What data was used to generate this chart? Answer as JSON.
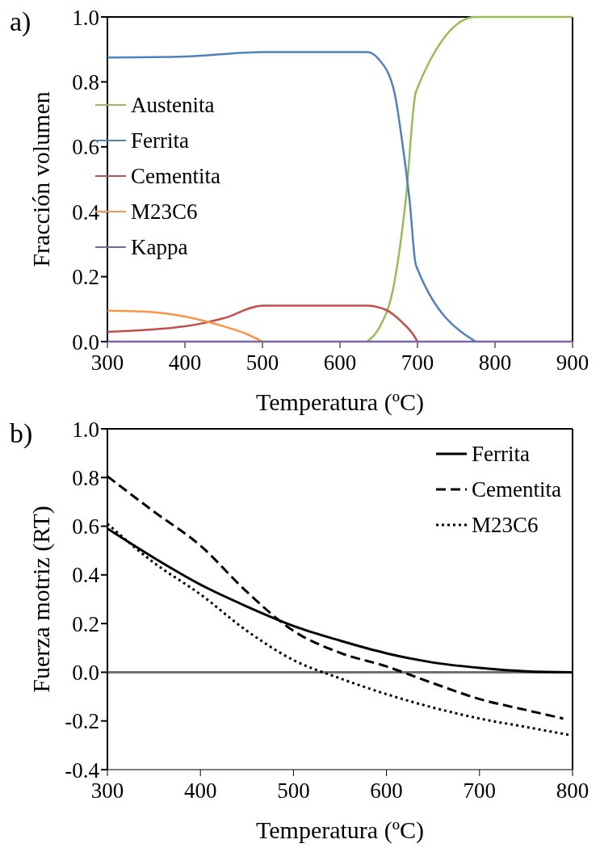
{
  "chart_data": [
    {
      "type": "line",
      "title": "a)",
      "xlabel": "Temperatura (ºC)",
      "ylabel": "Fracción volumen",
      "xlim": [
        300,
        900
      ],
      "ylim": [
        0,
        1.0
      ],
      "xticks": [
        300,
        400,
        500,
        600,
        700,
        800,
        900
      ],
      "yticks": [
        {
          "value": 0,
          "label": "0.0"
        },
        {
          "value": 0.2,
          "label": "0.2"
        },
        {
          "value": 0.4,
          "label": "0.4"
        },
        {
          "value": 0.6,
          "label": "0.6"
        },
        {
          "value": 0.8,
          "label": "0.8"
        },
        {
          "value": 1.0,
          "label": "1.0"
        }
      ],
      "grid": false,
      "legend": "left",
      "marker": "none",
      "series": [
        {
          "name": "Austenita",
          "color": "#9bbb59",
          "x": [
            635,
            650,
            670,
            685,
            698,
            775,
            900
          ],
          "values": [
            0,
            0.04,
            0.18,
            0.44,
            0.77,
            1.0,
            1.0
          ]
        },
        {
          "name": "Ferrita",
          "color": "#4f81bd",
          "x": [
            300,
            400,
            500,
            635,
            650,
            670,
            680,
            690,
            698,
            775
          ],
          "values": [
            0.875,
            0.878,
            0.892,
            0.892,
            0.87,
            0.77,
            0.62,
            0.43,
            0.235,
            0
          ]
        },
        {
          "name": "Cementita",
          "color": "#c0504d",
          "x": [
            300,
            400,
            450,
            500,
            635,
            660,
            680,
            695,
            700
          ],
          "values": [
            0.03,
            0.047,
            0.072,
            0.111,
            0.111,
            0.097,
            0.06,
            0.02,
            0
          ]
        },
        {
          "name": "M23C6",
          "color": "#f79646",
          "x": [
            300,
            350,
            400,
            450,
            480,
            500
          ],
          "values": [
            0.095,
            0.092,
            0.077,
            0.047,
            0.023,
            0
          ]
        },
        {
          "name": "Kappa",
          "color": "#8064a2",
          "x": [
            300,
            900
          ],
          "values": [
            0,
            0
          ]
        }
      ]
    },
    {
      "type": "line",
      "title": "b)",
      "xlabel": "Temperatura (ºC)",
      "ylabel": "Fuerza  motriz (RT)",
      "xlim": [
        300,
        800
      ],
      "ylim": [
        -0.4,
        1.0
      ],
      "xticks": [
        300,
        400,
        500,
        600,
        700,
        800
      ],
      "yticks": [
        {
          "value": -0.4,
          "label": "-0.4"
        },
        {
          "value": -0.2,
          "label": "-0.2"
        },
        {
          "value": 0,
          "label": "0.0"
        },
        {
          "value": 0.2,
          "label": "0.2"
        },
        {
          "value": 0.4,
          "label": "0.4"
        },
        {
          "value": 0.6,
          "label": "0.6"
        },
        {
          "value": 0.8,
          "label": "0.8"
        },
        {
          "value": 1.0,
          "label": "1.0"
        }
      ],
      "grid": false,
      "legend": "top right",
      "marker": "none",
      "ref_lines": [
        {
          "axis": "y",
          "value": 0,
          "color": "#707070"
        }
      ],
      "series": [
        {
          "name": "Ferrita",
          "color": "#000000",
          "line_style": "solid",
          "x": [
            300,
            350,
            400,
            450,
            500,
            550,
            600,
            650,
            700,
            750,
            800
          ],
          "values": [
            0.59,
            0.47,
            0.36,
            0.27,
            0.19,
            0.13,
            0.078,
            0.04,
            0.018,
            0.004,
            0
          ]
        },
        {
          "name": "Cementita",
          "color": "#000000",
          "line_style": "dashed",
          "x": [
            300,
            350,
            400,
            450,
            500,
            550,
            600,
            650,
            700,
            750,
            790
          ],
          "values": [
            0.805,
            0.66,
            0.52,
            0.33,
            0.17,
            0.08,
            0.024,
            -0.045,
            -0.11,
            -0.155,
            -0.19
          ]
        },
        {
          "name": "M23C6",
          "color": "#000000",
          "line_style": "dotted",
          "x": [
            300,
            350,
            400,
            450,
            500,
            550,
            600,
            650,
            700,
            750,
            800
          ],
          "values": [
            0.61,
            0.45,
            0.32,
            0.17,
            0.05,
            -0.025,
            -0.09,
            -0.145,
            -0.19,
            -0.225,
            -0.26
          ]
        }
      ]
    }
  ]
}
